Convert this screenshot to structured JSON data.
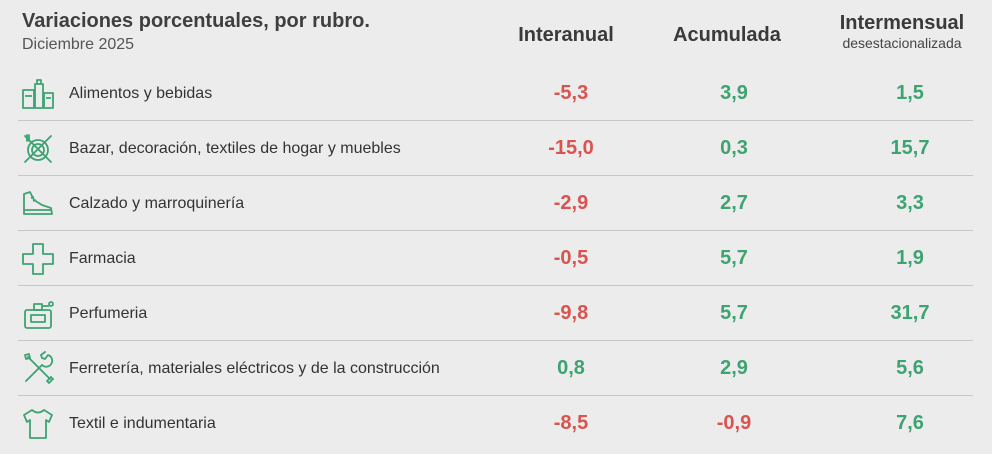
{
  "header": {
    "title": "Variaciones porcentuales, por rubro.",
    "subtitle": "Diciembre 2025"
  },
  "columns": {
    "interanual": "Interanual",
    "acumulada": "Acumulada",
    "intermensual": "Intermensual",
    "intermensual_sub": "desestacionalizada"
  },
  "colors": {
    "negative": "#d9534f",
    "positive": "#3ea372",
    "icon": "#3ea372"
  },
  "rows": [
    {
      "icon": "grocery-icon",
      "label": "Alimentos y bebidas",
      "interanual": "-5,3",
      "acumulada": "3,9",
      "intermensual": "1,5"
    },
    {
      "icon": "bazaar-icon",
      "label": "Bazar, decoración, textiles de hogar y muebles",
      "interanual": "-15,0",
      "acumulada": "0,3",
      "intermensual": "15,7"
    },
    {
      "icon": "shoe-icon",
      "label": "Calzado y marroquinería",
      "interanual": "-2,9",
      "acumulada": "2,7",
      "intermensual": "3,3"
    },
    {
      "icon": "pharmacy-cross-icon",
      "label": "Farmacia",
      "interanual": "-0,5",
      "acumulada": "5,7",
      "intermensual": "1,9"
    },
    {
      "icon": "perfume-icon",
      "label": "Perfumeria",
      "interanual": "-9,8",
      "acumulada": "5,7",
      "intermensual": "31,7"
    },
    {
      "icon": "tools-icon",
      "label": "Ferretería, materiales eléctricos y de la construcción",
      "interanual": "0,8",
      "acumulada": "2,9",
      "intermensual": "5,6"
    },
    {
      "icon": "shirt-icon",
      "label": "Textil e indumentaria",
      "interanual": "-8,5",
      "acumulada": "-0,9",
      "intermensual": "7,6"
    }
  ],
  "chart_data": {
    "type": "table",
    "title": "Variaciones porcentuales, por rubro.",
    "subtitle": "Diciembre 2025",
    "columns": [
      "Interanual",
      "Acumulada",
      "Intermensual desestacionalizada"
    ],
    "categories": [
      "Alimentos y bebidas",
      "Bazar, decoración, textiles de hogar y muebles",
      "Calzado y marroquinería",
      "Farmacia",
      "Perfumeria",
      "Ferretería, materiales eléctricos y de la construcción",
      "Textil e indumentaria"
    ],
    "series": [
      {
        "name": "Interanual",
        "values": [
          -5.3,
          -15.0,
          -2.9,
          -0.5,
          -9.8,
          0.8,
          -8.5
        ]
      },
      {
        "name": "Acumulada",
        "values": [
          3.9,
          0.3,
          2.7,
          5.7,
          5.7,
          2.9,
          -0.9
        ]
      },
      {
        "name": "Intermensual desestacionalizada",
        "values": [
          1.5,
          15.7,
          3.3,
          1.9,
          31.7,
          5.6,
          7.6
        ]
      }
    ]
  }
}
